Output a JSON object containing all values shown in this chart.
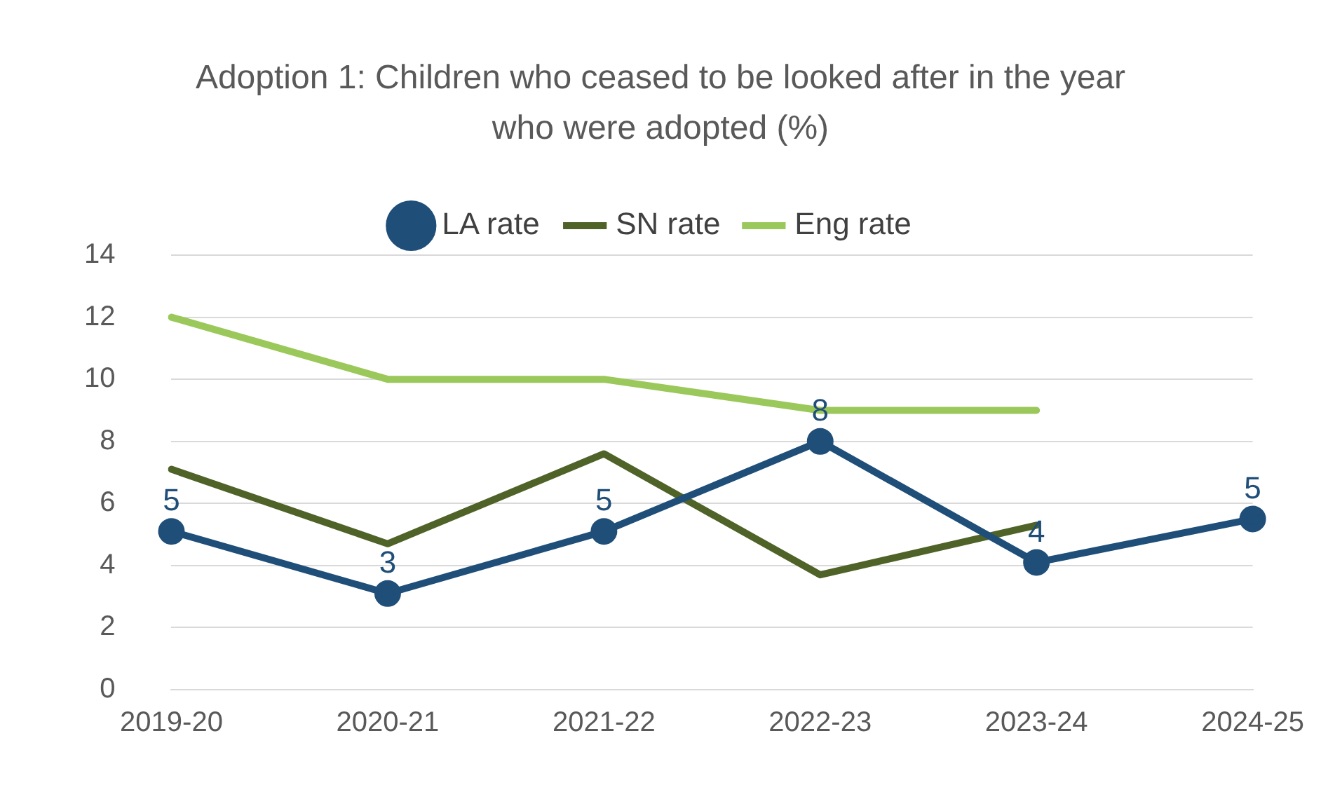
{
  "chart_data": {
    "type": "line",
    "title": "Adoption 1: Children who ceased to be looked after in the year who were adopted (%)",
    "categories": [
      "2019-20",
      "2020-21",
      "2021-22",
      "2022-23",
      "2023-24",
      "2024-25"
    ],
    "series": [
      {
        "name": "LA rate",
        "color": "#1f4e79",
        "marker": "circle",
        "values": [
          5.1,
          3.1,
          5.1,
          8,
          4.1,
          5.5
        ],
        "value_labels": [
          "5",
          "3",
          "5",
          "8",
          "4",
          "5"
        ]
      },
      {
        "name": "SN rate",
        "color": "#4f6228",
        "marker": "none",
        "values": [
          7.1,
          4.7,
          7.6,
          3.7,
          5.3,
          null
        ]
      },
      {
        "name": "Eng rate",
        "color": "#9bc85a",
        "marker": "none",
        "values": [
          12,
          10,
          10,
          9,
          9,
          null
        ]
      }
    ],
    "ylim": [
      0,
      14
    ],
    "yticks": [
      0,
      2,
      4,
      6,
      8,
      10,
      12,
      14
    ],
    "grid": "y",
    "legend": "top"
  }
}
